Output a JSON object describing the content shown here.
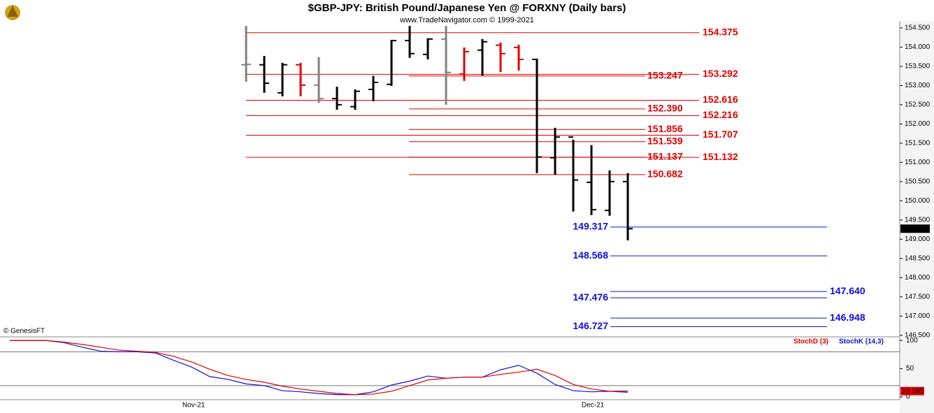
{
  "chart_data": [
    {
      "type": "ohlc",
      "title": "$GBP-JPY:  British Pound/Japanese Yen @ FORXNY  (Daily bars)",
      "subtitle": "www.TradeNavigator.com © 1999-2021",
      "source_note": "© GenesisFT",
      "x_labels": [
        "Nov-21",
        "Dec-21"
      ],
      "ylim": [
        146.46,
        154.68
      ],
      "yticks": [
        {
          "value": 154.5,
          "label": "154.500"
        },
        {
          "value": 154,
          "label": "154.000"
        },
        {
          "value": 153.5,
          "label": "153.500"
        },
        {
          "value": 153,
          "label": "153.000"
        },
        {
          "value": 152.5,
          "label": "152.500"
        },
        {
          "value": 152,
          "label": "152.000"
        },
        {
          "value": 151.5,
          "label": "151.500"
        },
        {
          "value": 151,
          "label": "151.000"
        },
        {
          "value": 150.5,
          "label": "150.500"
        },
        {
          "value": 150,
          "label": "150.000"
        },
        {
          "value": 149.5,
          "label": "149.500"
        },
        {
          "value": 149,
          "label": "149.000"
        },
        {
          "value": 148.5,
          "label": "148.500"
        },
        {
          "value": 148,
          "label": "148.000"
        },
        {
          "value": 147.5,
          "label": "147.500"
        },
        {
          "value": 147,
          "label": "147.000"
        },
        {
          "value": 146.5,
          "label": "146.500"
        }
      ],
      "open": [
        153.54,
        153.54,
        152.81,
        153.54,
        153.01,
        152.66,
        152.45,
        152.9,
        153.03,
        154.17,
        153.81,
        154.21,
        153.3,
        153.92,
        154.05,
        153.99,
        153.68,
        151.12,
        151.66,
        150.48,
        149.75,
        150.5
      ],
      "high": [
        154.55,
        153.77,
        153.59,
        153.59,
        153.74,
        152.97,
        152.9,
        153.25,
        154.19,
        154.55,
        154.23,
        154.55,
        153.99,
        154.21,
        154.12,
        154.06,
        153.7,
        151.9,
        151.59,
        151.45,
        150.79,
        150.72
      ],
      "low": [
        153.1,
        152.81,
        152.72,
        152.72,
        152.55,
        152.37,
        152.37,
        152.59,
        152.99,
        153.72,
        153.68,
        152.5,
        153.12,
        153.26,
        153.35,
        153.39,
        150.72,
        150.68,
        149.72,
        149.63,
        149.61,
        148.97
      ],
      "close": [
        153.55,
        153.06,
        153.54,
        153.01,
        152.66,
        152.5,
        152.85,
        153.08,
        154.17,
        153.83,
        154.21,
        153.34,
        153.88,
        154.14,
        153.83,
        153.68,
        151.14,
        151.66,
        150.54,
        149.77,
        150.5,
        149.274
      ],
      "bar_colors": [
        "#808080",
        "#000000",
        "#000000",
        "#e00000",
        "#808080",
        "#000000",
        "#000000",
        "#000000",
        "#000000",
        "#000000",
        "#000000",
        "#808080",
        "#e00000",
        "#000000",
        "#e00000",
        "#e00000",
        "#000000",
        "#000000",
        "#000000",
        "#000000",
        "#000000",
        "#000000"
      ],
      "level_groups": [
        {
          "color": "#e00000",
          "values": [
            154.375,
            153.292,
            152.616,
            152.216,
            151.707,
            151.132
          ],
          "value_labels": [
            "154.375",
            "153.292",
            "152.616",
            "152.216",
            "151.707",
            "151.132"
          ]
        },
        {
          "color": "#e00000",
          "values": [
            153.247,
            152.39,
            151.856,
            151.539,
            151.137,
            150.682
          ],
          "value_labels": [
            "153.247",
            "152.390",
            "151.856",
            "151.539",
            "151.137",
            "150.682"
          ]
        },
        {
          "color": "#1010d0",
          "values": [
            149.317,
            148.568,
            147.476,
            146.727
          ],
          "value_labels": [
            "149.317",
            "148.568",
            "147.476",
            "146.727"
          ]
        },
        {
          "color": "#1010d0",
          "values": [
            147.64,
            146.948
          ],
          "value_labels": [
            "147.640",
            "146.948"
          ]
        }
      ]
    },
    {
      "type": "line",
      "ylim": [
        -5,
        104
      ],
      "yticks": [
        100,
        50,
        0
      ],
      "reference_lines": [
        80,
        20
      ],
      "series": [
        {
          "name": "StochD (3)",
          "color": "#e00000",
          "values": [
            100,
            100,
            100,
            97,
            93,
            88,
            83,
            81,
            79,
            72,
            62,
            49,
            38,
            31,
            26,
            19,
            14,
            10,
            6,
            4,
            5,
            10,
            20,
            30,
            33,
            35,
            35,
            40,
            44,
            49,
            38,
            22,
            14,
            10,
            8
          ]
        },
        {
          "name": "StochK (14,3)",
          "color": "#1010d0",
          "values": [
            100,
            100,
            100,
            96,
            88,
            81,
            80,
            80,
            78,
            65,
            53,
            36,
            31,
            23,
            20,
            11,
            9,
            6,
            4,
            4,
            9,
            21,
            28,
            37,
            33,
            35,
            35,
            48,
            56,
            42,
            22,
            11,
            9,
            10,
            10.295
          ]
        }
      ]
    }
  ]
}
